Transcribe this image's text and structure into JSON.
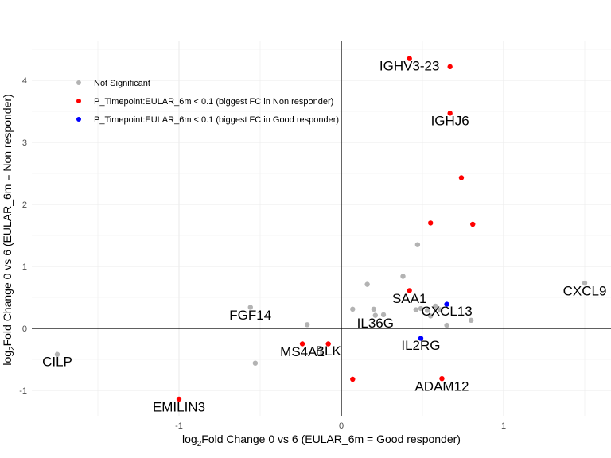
{
  "chart_data": {
    "type": "scatter",
    "xlabel": "log₂Fold Change 0 vs 6 (EULAR_6m = Good responder)",
    "ylabel": "log₂Fold Change 0 vs 6 (EULAR_6m = Non responder)",
    "xlim": [
      -2.0,
      1.65
    ],
    "ylim": [
      -1.4,
      4.6
    ],
    "x_ticks": [
      -1,
      0,
      1
    ],
    "y_ticks": [
      -1,
      0,
      1,
      2,
      3,
      4
    ],
    "x_tick_labels": [
      "-1",
      "0",
      "1"
    ],
    "y_tick_labels": [
      "-1",
      "0",
      "1",
      "2",
      "3",
      "4"
    ],
    "grid": true,
    "legend_position": "top-left",
    "colors": {
      "not_significant": "#b3b3b3",
      "non_responder": "#ff0000",
      "good_responder": "#0000ff"
    },
    "series": [
      {
        "name": "Not Significant",
        "key": "not_significant",
        "points": [
          {
            "x": -1.75,
            "y": -0.42
          },
          {
            "x": -0.53,
            "y": -0.56
          },
          {
            "x": -0.56,
            "y": 0.34
          },
          {
            "x": -0.21,
            "y": 0.06
          },
          {
            "x": 0.07,
            "y": 0.31
          },
          {
            "x": 0.16,
            "y": 0.71
          },
          {
            "x": 0.2,
            "y": 0.31
          },
          {
            "x": 0.21,
            "y": 0.21
          },
          {
            "x": 0.26,
            "y": 0.22
          },
          {
            "x": 0.38,
            "y": 0.84
          },
          {
            "x": 0.47,
            "y": 1.35
          },
          {
            "x": 0.46,
            "y": 0.3
          },
          {
            "x": 0.49,
            "y": 0.32
          },
          {
            "x": 0.53,
            "y": 0.29
          },
          {
            "x": 0.55,
            "y": 0.2
          },
          {
            "x": 0.58,
            "y": 0.36
          },
          {
            "x": 0.61,
            "y": 0.3
          },
          {
            "x": 0.65,
            "y": 0.05
          },
          {
            "x": 0.8,
            "y": 0.13
          },
          {
            "x": 1.5,
            "y": 0.73
          }
        ]
      },
      {
        "name": "P_Timepoint:EULAR_6m < 0.1 (biggest FC in Non responder)",
        "key": "non_responder",
        "points": [
          {
            "x": 0.42,
            "y": 4.35
          },
          {
            "x": 0.67,
            "y": 4.22
          },
          {
            "x": 0.67,
            "y": 3.47
          },
          {
            "x": 0.74,
            "y": 2.43
          },
          {
            "x": 0.55,
            "y": 1.7
          },
          {
            "x": 0.81,
            "y": 1.68
          },
          {
            "x": 0.42,
            "y": 0.61
          },
          {
            "x": -0.24,
            "y": -0.25
          },
          {
            "x": -0.08,
            "y": -0.25
          },
          {
            "x": 0.07,
            "y": -0.82
          },
          {
            "x": 0.62,
            "y": -0.81
          },
          {
            "x": -1.0,
            "y": -1.14
          }
        ]
      },
      {
        "name": "P_Timepoint:EULAR_6m < 0.1 (biggest FC in Good responder)",
        "key": "good_responder",
        "points": [
          {
            "x": 0.65,
            "y": 0.39
          },
          {
            "x": 0.49,
            "y": -0.16
          }
        ]
      }
    ],
    "labels": [
      {
        "text": "IGHV3-23",
        "x": 0.42,
        "y": 4.24
      },
      {
        "text": "IGHJ6",
        "x": 0.67,
        "y": 3.35
      },
      {
        "text": "CXCL9",
        "x": 1.5,
        "y": 0.61
      },
      {
        "text": "SAA1",
        "x": 0.42,
        "y": 0.49
      },
      {
        "text": "CXCL13",
        "x": 0.65,
        "y": 0.28
      },
      {
        "text": "FGF14",
        "x": -0.56,
        "y": 0.22
      },
      {
        "text": "IL36G",
        "x": 0.21,
        "y": 0.09
      },
      {
        "text": "IL2RG",
        "x": 0.49,
        "y": -0.27
      },
      {
        "text": "MS4A1",
        "x": -0.24,
        "y": -0.37
      },
      {
        "text": "BLK",
        "x": -0.08,
        "y": -0.36
      },
      {
        "text": "CILP",
        "x": -1.75,
        "y": -0.53
      },
      {
        "text": "ADAM12",
        "x": 0.62,
        "y": -0.93
      },
      {
        "text": "EMILIN3",
        "x": -1.0,
        "y": -1.26
      }
    ]
  }
}
